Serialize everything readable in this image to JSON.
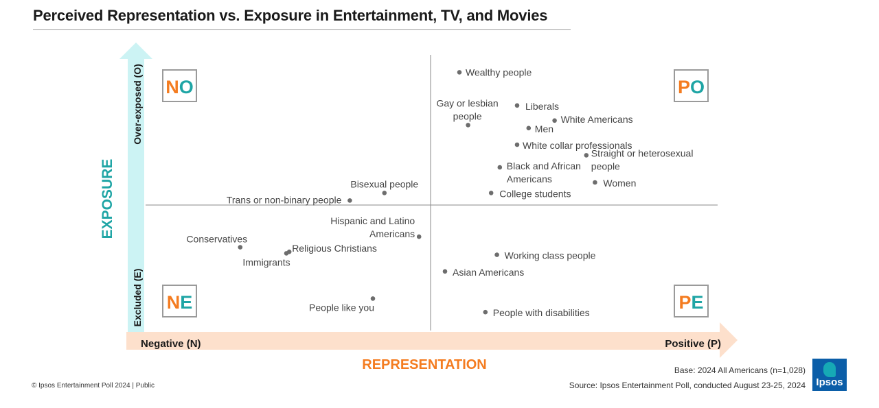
{
  "page": {
    "title": "Perceived Representation vs. Exposure in Entertainment, TV, and Movies",
    "footer_left": "© Ipsos Entertainment Poll 2024 | Public",
    "base": "Base: 2024 All Americans (n=1,028)",
    "source": "Source: Ipsos Entertainment Poll, conducted August 23-25, 2024",
    "logo_text": "Ipsos"
  },
  "colors": {
    "exposure_arrow": "#ccf3f4",
    "representation_arrow": "#fde0cc",
    "orange": "#f47c20",
    "teal": "#1fa5a5",
    "point": "#6d6d6d",
    "logo_bg": "#0b5ea8"
  },
  "chart_data": {
    "type": "scatter",
    "title": "Perceived Representation vs. Exposure in Entertainment, TV, and Movies",
    "xlabel": "REPRESENTATION",
    "ylabel": "EXPOSURE",
    "x_axis_ends": {
      "low": "Negative (N)",
      "high": "Positive (P)"
    },
    "y_axis_ends": {
      "low": "Excluded (E)",
      "high": "Over-exposed (O)"
    },
    "xlim": [
      -1,
      1
    ],
    "ylim": [
      -1,
      1
    ],
    "grid": false,
    "quadrants": [
      {
        "id": "NO",
        "first": "N",
        "second": "O"
      },
      {
        "id": "PO",
        "first": "P",
        "second": "O"
      },
      {
        "id": "NE",
        "first": "N",
        "second": "E"
      },
      {
        "id": "PE",
        "first": "P",
        "second": "E"
      }
    ],
    "points": [
      {
        "label": "Wealthy people",
        "x": 0.1,
        "y": 0.88
      },
      {
        "label": "Gay or lesbian people",
        "x": 0.13,
        "y": 0.53
      },
      {
        "label": "Liberals",
        "x": 0.3,
        "y": 0.66
      },
      {
        "label": "White Americans",
        "x": 0.43,
        "y": 0.56
      },
      {
        "label": "Men",
        "x": 0.34,
        "y": 0.51
      },
      {
        "label": "White collar professionals",
        "x": 0.3,
        "y": 0.4
      },
      {
        "label": "Straight or heterosexual people",
        "x": 0.54,
        "y": 0.33
      },
      {
        "label": "Black and African Americans",
        "x": 0.24,
        "y": 0.25
      },
      {
        "label": "Women",
        "x": 0.57,
        "y": 0.15
      },
      {
        "label": "College students",
        "x": 0.21,
        "y": 0.08
      },
      {
        "label": "Bisexual people",
        "x": -0.16,
        "y": 0.08
      },
      {
        "label": "Trans or non-binary people",
        "x": -0.28,
        "y": 0.03
      },
      {
        "label": "Hispanic and Latino Americans",
        "x": -0.04,
        "y": -0.21
      },
      {
        "label": "Conservatives",
        "x": -0.66,
        "y": -0.28
      },
      {
        "label": "Religious Christians",
        "x": -0.49,
        "y": -0.31
      },
      {
        "label": "Immigrants",
        "x": -0.5,
        "y": -0.32
      },
      {
        "label": "Working class people",
        "x": 0.23,
        "y": -0.33
      },
      {
        "label": "Asian Americans",
        "x": 0.05,
        "y": -0.44
      },
      {
        "label": "People like you",
        "x": -0.2,
        "y": -0.62
      },
      {
        "label": "People with disabilities",
        "x": 0.19,
        "y": -0.71
      }
    ]
  }
}
